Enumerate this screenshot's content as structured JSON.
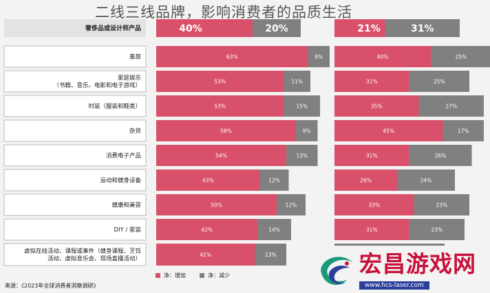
{
  "overlay_title": "二线三线品牌，影响消费者的品质生活",
  "colors": {
    "increase": "#d9506a",
    "decrease": "#808080"
  },
  "chart_data": {
    "type": "bar",
    "categories": [
      [
        "奢侈品或设计师产品"
      ],
      [
        "差旅"
      ],
      [
        "家庭娱乐",
        "（书籍、音乐、电影和电子游戏）"
      ],
      [
        "时装（服装和鞋类）"
      ],
      [
        "杂货"
      ],
      [
        "消费电子产品"
      ],
      [
        "运动和健身设备"
      ],
      [
        "健康和美容"
      ],
      [
        "DIY / 家装"
      ],
      [
        "虚拟在线活动、课程或事件（健身课程、烹饪",
        "活动、虚拟音乐会、现场直播活动）"
      ]
    ],
    "panels": [
      {
        "increase": [
          40,
          63,
          53,
          53,
          58,
          54,
          43,
          50,
          42,
          41
        ],
        "decrease": [
          20,
          9,
          11,
          15,
          9,
          13,
          12,
          12,
          14,
          13
        ]
      },
      {
        "increase": [
          21,
          40,
          31,
          35,
          45,
          31,
          26,
          33,
          31,
          null
        ],
        "decrease": [
          31,
          25,
          25,
          27,
          17,
          26,
          24,
          23,
          23,
          null
        ]
      }
    ],
    "legend": [
      "净：增加",
      "净：减少"
    ],
    "source": "来源：《2023年全球消费者洞察调研》"
  },
  "watermark": {
    "name": "宏昌游戏网",
    "url": "www.hcs-laser.com"
  }
}
